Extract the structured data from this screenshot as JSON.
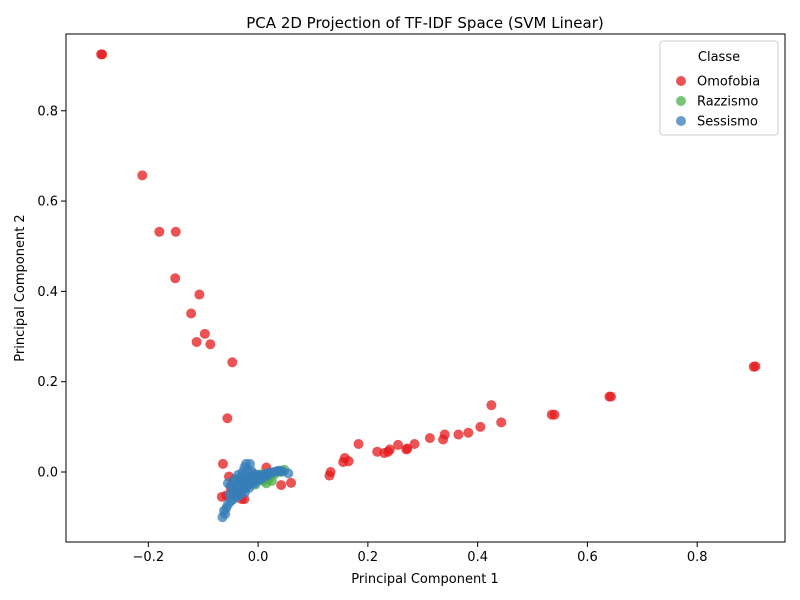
{
  "chart_data": {
    "type": "scatter",
    "title": "PCA 2D Projection of TF-IDF Space (SVM Linear)",
    "xlabel": "Principal Component 1",
    "ylabel": "Principal Component 2",
    "xlim": [
      -0.35,
      0.96
    ],
    "ylim": [
      -0.155,
      0.97
    ],
    "xticks": [
      -0.2,
      0.0,
      0.2,
      0.4,
      0.6,
      0.8
    ],
    "xtick_labels": [
      "−0.2",
      "0.0",
      "0.2",
      "0.4",
      "0.6",
      "0.8"
    ],
    "yticks": [
      0.0,
      0.2,
      0.4,
      0.6,
      0.8
    ],
    "ytick_labels": [
      "0.0",
      "0.2",
      "0.4",
      "0.6",
      "0.8"
    ],
    "grid": false,
    "legend": {
      "title": "Classe",
      "position": "top-right"
    },
    "series": [
      {
        "name": "Omofobia",
        "color": "#e41a1c",
        "points": [
          [
            -0.286,
            0.925
          ],
          [
            -0.284,
            0.925
          ],
          [
            -0.211,
            0.657
          ],
          [
            -0.18,
            0.532
          ],
          [
            -0.15,
            0.532
          ],
          [
            -0.151,
            0.429
          ],
          [
            -0.107,
            0.393
          ],
          [
            -0.122,
            0.351
          ],
          [
            -0.097,
            0.306
          ],
          [
            -0.112,
            0.288
          ],
          [
            -0.087,
            0.283
          ],
          [
            -0.047,
            0.243
          ],
          [
            -0.056,
            0.119
          ],
          [
            -0.064,
            0.018
          ],
          [
            -0.066,
            -0.055
          ],
          [
            -0.058,
            -0.052
          ],
          [
            -0.05,
            -0.035
          ],
          [
            -0.053,
            -0.01
          ],
          [
            -0.045,
            -0.02
          ],
          [
            -0.03,
            -0.06
          ],
          [
            -0.025,
            -0.06
          ],
          [
            -0.02,
            -0.03
          ],
          [
            0.015,
            0.01
          ],
          [
            0.042,
            -0.029
          ],
          [
            0.06,
            -0.024
          ],
          [
            0.13,
            -0.008
          ],
          [
            0.132,
            0.0
          ],
          [
            0.155,
            0.022
          ],
          [
            0.158,
            0.031
          ],
          [
            0.165,
            0.024
          ],
          [
            0.183,
            0.062
          ],
          [
            0.217,
            0.045
          ],
          [
            0.23,
            0.042
          ],
          [
            0.237,
            0.045
          ],
          [
            0.24,
            0.05
          ],
          [
            0.255,
            0.06
          ],
          [
            0.27,
            0.05
          ],
          [
            0.272,
            0.052
          ],
          [
            0.285,
            0.062
          ],
          [
            0.313,
            0.075
          ],
          [
            0.337,
            0.072
          ],
          [
            0.34,
            0.083
          ],
          [
            0.365,
            0.083
          ],
          [
            0.383,
            0.087
          ],
          [
            0.405,
            0.1
          ],
          [
            0.425,
            0.148
          ],
          [
            0.443,
            0.11
          ],
          [
            0.535,
            0.127
          ],
          [
            0.54,
            0.127
          ],
          [
            0.64,
            0.167
          ],
          [
            0.643,
            0.167
          ],
          [
            0.903,
            0.233
          ],
          [
            0.906,
            0.234
          ]
        ]
      },
      {
        "name": "Razzismo",
        "color": "#4daf4a",
        "points": [
          [
            -0.04,
            -0.02
          ],
          [
            -0.03,
            -0.015
          ],
          [
            -0.02,
            -0.01
          ],
          [
            -0.01,
            -0.018
          ],
          [
            0.0,
            -0.01
          ],
          [
            0.01,
            -0.02
          ],
          [
            0.02,
            -0.015
          ],
          [
            0.03,
            -0.005
          ],
          [
            0.04,
            0.0
          ],
          [
            0.048,
            0.005
          ],
          [
            0.025,
            -0.02
          ],
          [
            -0.035,
            -0.04
          ],
          [
            -0.025,
            -0.03
          ],
          [
            0.015,
            -0.025
          ],
          [
            -0.045,
            -0.05
          ],
          [
            0.005,
            -0.005
          ],
          [
            0.035,
            0.002
          ],
          [
            -0.015,
            -0.022
          ],
          [
            0.012,
            -0.012
          ],
          [
            -0.005,
            -0.028
          ]
        ]
      },
      {
        "name": "Sessismo",
        "color": "#377eb8",
        "points": [
          [
            -0.065,
            -0.1
          ],
          [
            -0.06,
            -0.093
          ],
          [
            -0.062,
            -0.086
          ],
          [
            -0.058,
            -0.08
          ],
          [
            -0.055,
            -0.072
          ],
          [
            -0.05,
            -0.065
          ],
          [
            -0.045,
            -0.06
          ],
          [
            -0.04,
            -0.055
          ],
          [
            -0.035,
            -0.048
          ],
          [
            -0.03,
            -0.042
          ],
          [
            -0.025,
            -0.038
          ],
          [
            -0.02,
            -0.032
          ],
          [
            -0.015,
            -0.027
          ],
          [
            -0.01,
            -0.022
          ],
          [
            -0.005,
            -0.017
          ],
          [
            0.0,
            -0.012
          ],
          [
            0.005,
            -0.008
          ],
          [
            0.01,
            -0.006
          ],
          [
            0.015,
            -0.004
          ],
          [
            0.02,
            -0.002
          ],
          [
            0.025,
            -0.001
          ],
          [
            0.03,
            0.0
          ],
          [
            0.035,
            0.002
          ],
          [
            0.04,
            0.003
          ],
          [
            0.045,
            0.001
          ],
          [
            0.055,
            -0.003
          ],
          [
            -0.055,
            -0.025
          ],
          [
            -0.05,
            -0.03
          ],
          [
            -0.045,
            -0.035
          ],
          [
            -0.04,
            -0.04
          ],
          [
            -0.035,
            -0.02
          ],
          [
            -0.03,
            -0.01
          ],
          [
            -0.028,
            0.0
          ],
          [
            -0.025,
            0.01
          ],
          [
            -0.022,
            0.018
          ],
          [
            -0.015,
            0.018
          ],
          [
            -0.02,
            0.005
          ],
          [
            -0.012,
            0.002
          ],
          [
            -0.008,
            -0.004
          ],
          [
            -0.002,
            -0.006
          ],
          [
            -0.038,
            -0.028
          ],
          [
            -0.032,
            -0.034
          ],
          [
            -0.026,
            -0.024
          ],
          [
            -0.018,
            -0.014
          ],
          [
            -0.01,
            -0.01
          ],
          [
            -0.042,
            -0.015
          ],
          [
            -0.036,
            -0.006
          ],
          [
            -0.03,
            -0.02
          ],
          [
            -0.024,
            -0.045
          ],
          [
            -0.016,
            -0.035
          ],
          [
            -0.006,
            -0.025
          ],
          [
            0.002,
            -0.018
          ],
          [
            0.008,
            -0.014
          ],
          [
            -0.046,
            -0.045
          ],
          [
            -0.052,
            -0.05
          ],
          [
            -0.02,
            -0.016
          ],
          [
            -0.012,
            -0.02
          ],
          [
            -0.004,
            -0.012
          ],
          [
            0.018,
            -0.008
          ],
          [
            -0.034,
            -0.052
          ]
        ]
      }
    ]
  }
}
